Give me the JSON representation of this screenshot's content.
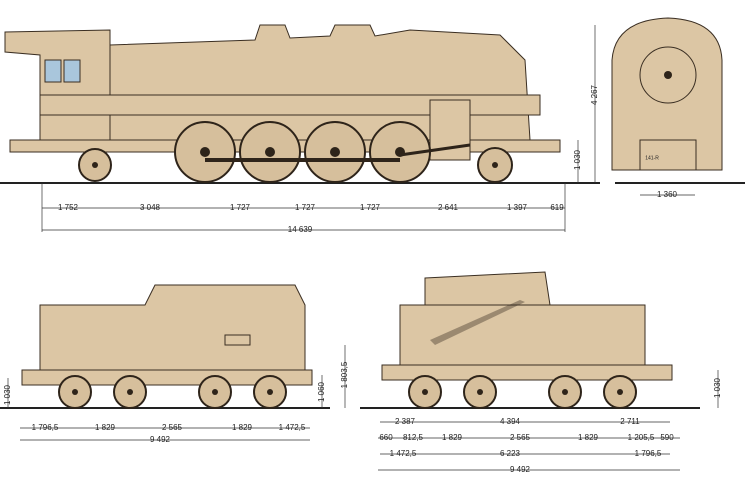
{
  "locomotive": {
    "plate": "141-R",
    "side_dimensions": [
      "1 752",
      "3 048",
      "1 727",
      "1 727",
      "1 727",
      "2 641",
      "1 397",
      "619"
    ],
    "overall_length": "14 639",
    "height": "4 267",
    "buffer_height": "1 030",
    "front_width": "1 360"
  },
  "tender_left": {
    "dimensions": [
      "1 796,5",
      "1 829",
      "2 565",
      "1 829",
      "1 472,5"
    ],
    "overall_length": "9 492",
    "buffer_height": "1 030",
    "frame_height": "1 060"
  },
  "tender_right": {
    "row1": [
      "2 387",
      "4 394",
      "2 711"
    ],
    "row2": [
      "660",
      "812,5",
      "1 829",
      "2 565",
      "1 829",
      "1 205,5",
      "590"
    ],
    "row3": [
      "1 472,5",
      "6 223",
      "1 796,5"
    ],
    "overall_length": "9 492",
    "height": "1 803,5",
    "buffer_height": "1 030"
  }
}
